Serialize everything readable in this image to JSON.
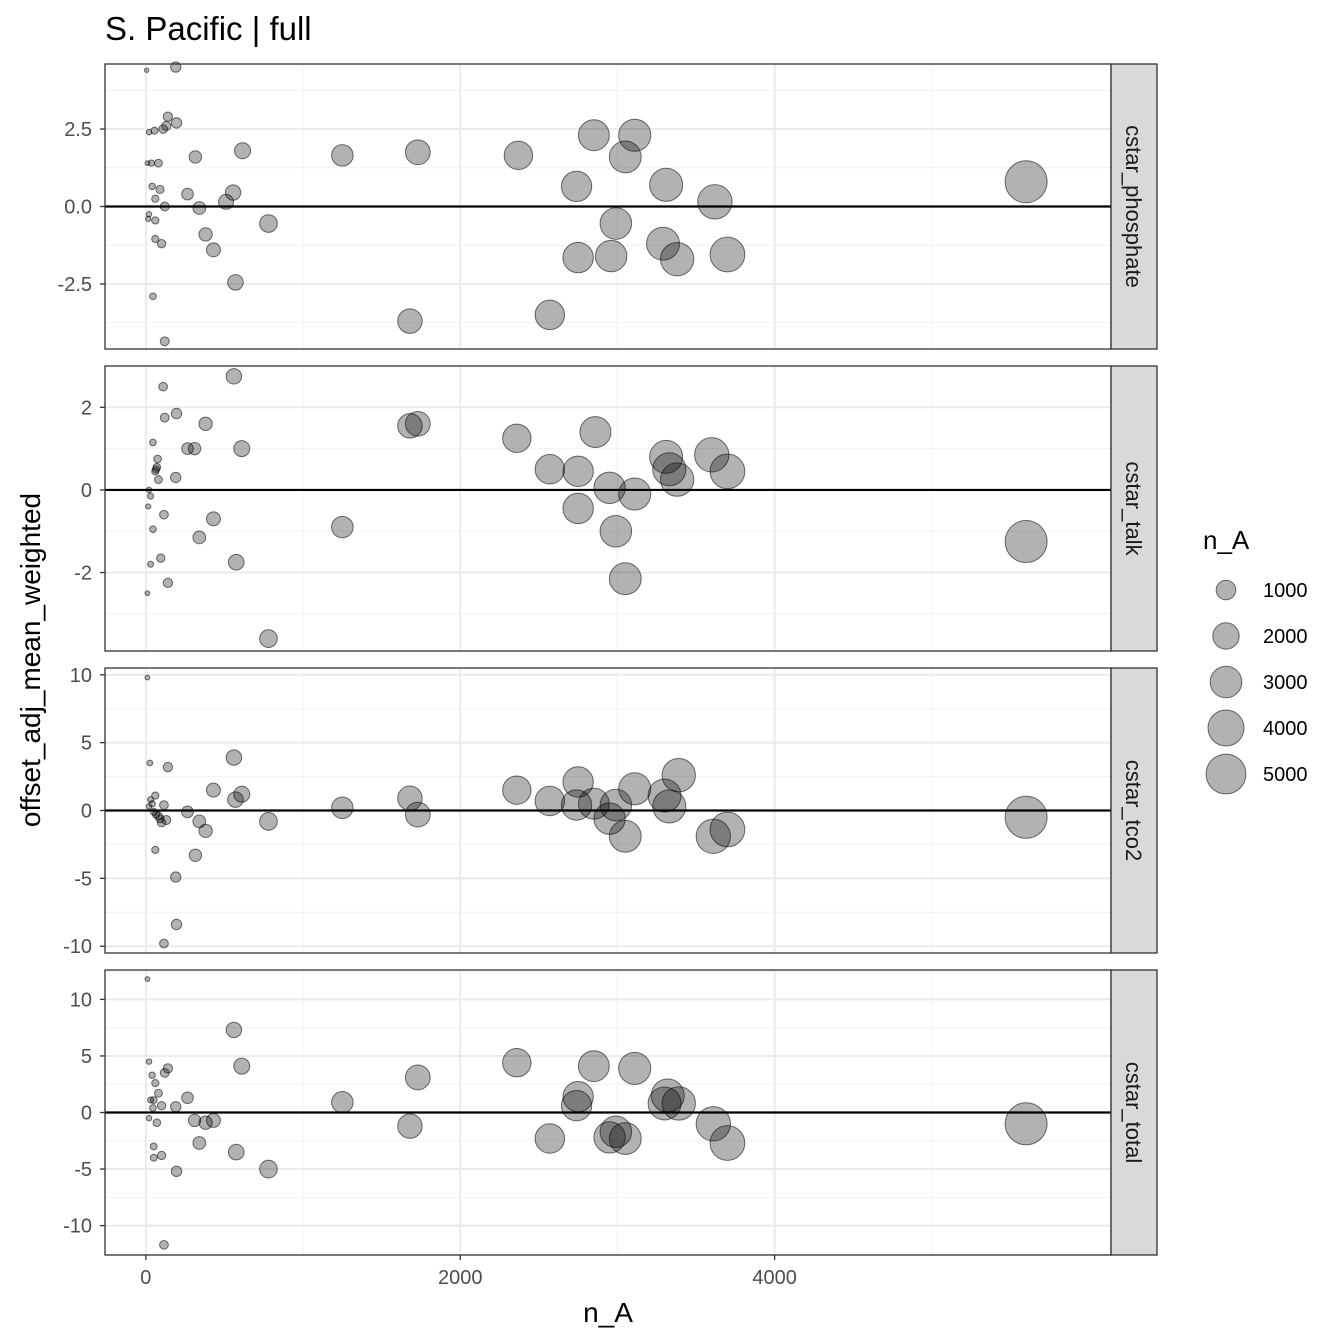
{
  "chart_data": {
    "type": "scatter",
    "title": "S. Pacific | full",
    "xlabel": "n_A",
    "ylabel": "offset_adj_mean_weighted",
    "xlim": [
      -260,
      6140
    ],
    "x_ticks": [
      0,
      2000,
      4000
    ],
    "x_tick_labels": [
      "0",
      "2000",
      "4000"
    ],
    "reference_line_y": 0,
    "size_variable": "n_A",
    "point_color": "#000000",
    "point_alpha": 0.3,
    "legend": {
      "title": "n_A",
      "placement": "right",
      "entries": [
        {
          "label": "1000",
          "value": 1000
        },
        {
          "label": "2000",
          "value": 2000
        },
        {
          "label": "3000",
          "value": 3000
        },
        {
          "label": "4000",
          "value": 4000
        },
        {
          "label": "5000",
          "value": 5000
        }
      ]
    },
    "panels": [
      {
        "name": "cstar_phosphate",
        "ylim": [
          -4.6,
          4.6
        ],
        "y_ticks": [
          -2.5,
          0,
          2.5
        ],
        "y_tick_labels": [
          "-2.5",
          "0.0",
          "2.5"
        ],
        "points": [
          {
            "x": 5,
            "y": 4.4
          },
          {
            "x": 190,
            "y": 4.5
          },
          {
            "x": 140,
            "y": 2.9
          },
          {
            "x": 195,
            "y": 2.7
          },
          {
            "x": 130,
            "y": 2.6
          },
          {
            "x": 110,
            "y": 2.5
          },
          {
            "x": 55,
            "y": 2.45
          },
          {
            "x": 20,
            "y": 2.4
          },
          {
            "x": 10,
            "y": 1.4
          },
          {
            "x": 35,
            "y": 1.4
          },
          {
            "x": 80,
            "y": 1.4
          },
          {
            "x": 315,
            "y": 1.6
          },
          {
            "x": 615,
            "y": 1.8
          },
          {
            "x": 1250,
            "y": 1.65
          },
          {
            "x": 1730,
            "y": 1.75
          },
          {
            "x": 2370,
            "y": 1.65
          },
          {
            "x": 2850,
            "y": 2.3
          },
          {
            "x": 3110,
            "y": 2.3
          },
          {
            "x": 3050,
            "y": 1.6
          },
          {
            "x": 40,
            "y": 0.65
          },
          {
            "x": 90,
            "y": 0.55
          },
          {
            "x": 60,
            "y": 0.25
          },
          {
            "x": 265,
            "y": 0.4
          },
          {
            "x": 555,
            "y": 0.45
          },
          {
            "x": 2740,
            "y": 0.65
          },
          {
            "x": 3310,
            "y": 0.7
          },
          {
            "x": 5600,
            "y": 0.8
          },
          {
            "x": 3620,
            "y": 0.15
          },
          {
            "x": 120,
            "y": 0.0
          },
          {
            "x": 340,
            "y": -0.05
          },
          {
            "x": 510,
            "y": 0.15
          },
          {
            "x": 20,
            "y": -0.25
          },
          {
            "x": 15,
            "y": -0.4
          },
          {
            "x": 60,
            "y": -0.45
          },
          {
            "x": 2990,
            "y": -0.55
          },
          {
            "x": 780,
            "y": -0.55
          },
          {
            "x": 380,
            "y": -0.9
          },
          {
            "x": 60,
            "y": -1.05
          },
          {
            "x": 100,
            "y": -1.2
          },
          {
            "x": 430,
            "y": -1.4
          },
          {
            "x": 3290,
            "y": -1.2
          },
          {
            "x": 2750,
            "y": -1.65
          },
          {
            "x": 2960,
            "y": -1.6
          },
          {
            "x": 3380,
            "y": -1.7
          },
          {
            "x": 3700,
            "y": -1.55
          },
          {
            "x": 570,
            "y": -2.45
          },
          {
            "x": 45,
            "y": -2.9
          },
          {
            "x": 1680,
            "y": -3.7
          },
          {
            "x": 2570,
            "y": -3.5
          },
          {
            "x": 120,
            "y": -4.35
          }
        ]
      },
      {
        "name": "cstar_talk",
        "ylim": [
          -3.9,
          3.0
        ],
        "y_ticks": [
          -2,
          0,
          2
        ],
        "y_tick_labels": [
          "-2",
          "0",
          "2"
        ],
        "points": [
          {
            "x": 560,
            "y": 2.75
          },
          {
            "x": 110,
            "y": 2.5
          },
          {
            "x": 195,
            "y": 1.85
          },
          {
            "x": 120,
            "y": 1.75
          },
          {
            "x": 380,
            "y": 1.6
          },
          {
            "x": 1680,
            "y": 1.55
          },
          {
            "x": 1730,
            "y": 1.6
          },
          {
            "x": 2860,
            "y": 1.4
          },
          {
            "x": 2360,
            "y": 1.25
          },
          {
            "x": 45,
            "y": 1.15
          },
          {
            "x": 265,
            "y": 1.0
          },
          {
            "x": 310,
            "y": 1.0
          },
          {
            "x": 610,
            "y": 1.0
          },
          {
            "x": 3310,
            "y": 0.8
          },
          {
            "x": 3600,
            "y": 0.85
          },
          {
            "x": 75,
            "y": 0.75
          },
          {
            "x": 70,
            "y": 0.55
          },
          {
            "x": 60,
            "y": 0.45
          },
          {
            "x": 65,
            "y": 0.5
          },
          {
            "x": 2570,
            "y": 0.5
          },
          {
            "x": 2750,
            "y": 0.45
          },
          {
            "x": 3330,
            "y": 0.5
          },
          {
            "x": 3700,
            "y": 0.45
          },
          {
            "x": 80,
            "y": 0.25
          },
          {
            "x": 190,
            "y": 0.3
          },
          {
            "x": 3380,
            "y": 0.25
          },
          {
            "x": 2950,
            "y": 0.05
          },
          {
            "x": 3110,
            "y": -0.1
          },
          {
            "x": 20,
            "y": 0.0
          },
          {
            "x": 30,
            "y": -0.15
          },
          {
            "x": 15,
            "y": -0.4
          },
          {
            "x": 115,
            "y": -0.6
          },
          {
            "x": 2750,
            "y": -0.45
          },
          {
            "x": 430,
            "y": -0.7
          },
          {
            "x": 45,
            "y": -0.95
          },
          {
            "x": 1250,
            "y": -0.9
          },
          {
            "x": 2990,
            "y": -1.0
          },
          {
            "x": 340,
            "y": -1.15
          },
          {
            "x": 5600,
            "y": -1.25
          },
          {
            "x": 95,
            "y": -1.65
          },
          {
            "x": 575,
            "y": -1.75
          },
          {
            "x": 30,
            "y": -1.8
          },
          {
            "x": 3050,
            "y": -2.15
          },
          {
            "x": 140,
            "y": -2.25
          },
          {
            "x": 10,
            "y": -2.5
          },
          {
            "x": 780,
            "y": -3.6
          }
        ]
      },
      {
        "name": "cstar_tco2",
        "ylim": [
          -10.5,
          10.5
        ],
        "y_ticks": [
          -10,
          -5,
          0,
          5,
          10
        ],
        "y_tick_labels": [
          "-10",
          "-5",
          "0",
          "5",
          "10"
        ],
        "points": [
          {
            "x": 10,
            "y": 9.8
          },
          {
            "x": 560,
            "y": 3.9
          },
          {
            "x": 25,
            "y": 3.5
          },
          {
            "x": 140,
            "y": 3.2
          },
          {
            "x": 2750,
            "y": 2.1
          },
          {
            "x": 3390,
            "y": 2.6
          },
          {
            "x": 3110,
            "y": 1.6
          },
          {
            "x": 2360,
            "y": 1.5
          },
          {
            "x": 430,
            "y": 1.5
          },
          {
            "x": 610,
            "y": 1.2
          },
          {
            "x": 570,
            "y": 0.8
          },
          {
            "x": 1680,
            "y": 0.9
          },
          {
            "x": 3300,
            "y": 1.1
          },
          {
            "x": 60,
            "y": 1.1
          },
          {
            "x": 30,
            "y": 0.8
          },
          {
            "x": 40,
            "y": 0.5
          },
          {
            "x": 20,
            "y": 0.3
          },
          {
            "x": 2570,
            "y": 0.7
          },
          {
            "x": 1250,
            "y": 0.2
          },
          {
            "x": 2740,
            "y": 0.4
          },
          {
            "x": 2850,
            "y": 0.5
          },
          {
            "x": 2990,
            "y": 0.4
          },
          {
            "x": 3330,
            "y": 0.3
          },
          {
            "x": 115,
            "y": 0.4
          },
          {
            "x": 50,
            "y": -0.1
          },
          {
            "x": 65,
            "y": -0.3
          },
          {
            "x": 80,
            "y": -0.4
          },
          {
            "x": 90,
            "y": -0.6
          },
          {
            "x": 265,
            "y": -0.1
          },
          {
            "x": 1730,
            "y": -0.3
          },
          {
            "x": 5600,
            "y": -0.5
          },
          {
            "x": 2950,
            "y": -0.6
          },
          {
            "x": 780,
            "y": -0.8
          },
          {
            "x": 130,
            "y": -0.7
          },
          {
            "x": 340,
            "y": -0.8
          },
          {
            "x": 100,
            "y": -0.9
          },
          {
            "x": 380,
            "y": -1.5
          },
          {
            "x": 3700,
            "y": -1.4
          },
          {
            "x": 3050,
            "y": -1.9
          },
          {
            "x": 3610,
            "y": -1.9
          },
          {
            "x": 60,
            "y": -2.9
          },
          {
            "x": 315,
            "y": -3.3
          },
          {
            "x": 190,
            "y": -4.9
          },
          {
            "x": 195,
            "y": -8.4
          },
          {
            "x": 115,
            "y": -9.8
          }
        ]
      },
      {
        "name": "cstar_total",
        "ylim": [
          -12.6,
          12.6
        ],
        "y_ticks": [
          -10,
          -5,
          0,
          5,
          10
        ],
        "y_tick_labels": [
          "-10",
          "-5",
          "0",
          "5",
          "10"
        ],
        "points": [
          {
            "x": 10,
            "y": 11.8
          },
          {
            "x": 560,
            "y": 7.3
          },
          {
            "x": 2360,
            "y": 4.4
          },
          {
            "x": 20,
            "y": 4.5
          },
          {
            "x": 2850,
            "y": 4.1
          },
          {
            "x": 610,
            "y": 4.1
          },
          {
            "x": 3110,
            "y": 3.9
          },
          {
            "x": 140,
            "y": 3.9
          },
          {
            "x": 120,
            "y": 3.5
          },
          {
            "x": 40,
            "y": 3.3
          },
          {
            "x": 1730,
            "y": 3.1
          },
          {
            "x": 60,
            "y": 2.6
          },
          {
            "x": 80,
            "y": 1.7
          },
          {
            "x": 2750,
            "y": 1.4
          },
          {
            "x": 3320,
            "y": 1.5
          },
          {
            "x": 265,
            "y": 1.3
          },
          {
            "x": 30,
            "y": 1.1
          },
          {
            "x": 50,
            "y": 1.1
          },
          {
            "x": 1250,
            "y": 0.9
          },
          {
            "x": 3300,
            "y": 0.8
          },
          {
            "x": 3390,
            "y": 0.8
          },
          {
            "x": 2740,
            "y": 0.6
          },
          {
            "x": 190,
            "y": 0.5
          },
          {
            "x": 100,
            "y": 0.6
          },
          {
            "x": 45,
            "y": 0.4
          },
          {
            "x": 20,
            "y": -0.5
          },
          {
            "x": 70,
            "y": -0.9
          },
          {
            "x": 310,
            "y": -0.7
          },
          {
            "x": 380,
            "y": -0.9
          },
          {
            "x": 430,
            "y": -0.7
          },
          {
            "x": 5600,
            "y": -1.0
          },
          {
            "x": 1680,
            "y": -1.2
          },
          {
            "x": 3610,
            "y": -1.0
          },
          {
            "x": 2990,
            "y": -1.7
          },
          {
            "x": 2570,
            "y": -2.3
          },
          {
            "x": 2950,
            "y": -2.2
          },
          {
            "x": 3050,
            "y": -2.3
          },
          {
            "x": 3700,
            "y": -2.7
          },
          {
            "x": 340,
            "y": -2.7
          },
          {
            "x": 50,
            "y": -3.0
          },
          {
            "x": 575,
            "y": -3.5
          },
          {
            "x": 100,
            "y": -3.8
          },
          {
            "x": 50,
            "y": -4.0
          },
          {
            "x": 780,
            "y": -5.0
          },
          {
            "x": 195,
            "y": -5.2
          },
          {
            "x": 115,
            "y": -11.7
          }
        ]
      }
    ]
  }
}
